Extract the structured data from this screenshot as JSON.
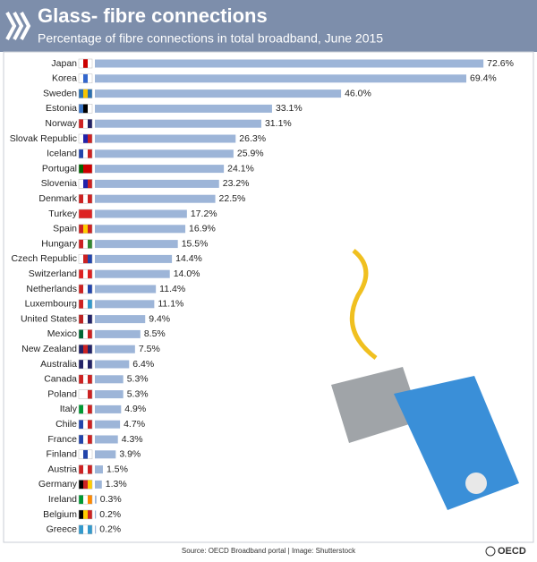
{
  "chart_data": {
    "type": "bar",
    "orientation": "horizontal",
    "title": "Glass- fibre connections",
    "subtitle": "Percentage of fibre connections in total broadband, June 2015",
    "source": "Source: OECD Broadband portal | Image: Shutterstock",
    "logo": "OECD",
    "color": "#9db5d8",
    "categories": [
      "Japan",
      "Korea",
      "Sweden",
      "Estonia",
      "Norway",
      "Slovak Republic",
      "Iceland",
      "Portugal",
      "Slovenia",
      "Denmark",
      "Turkey",
      "Spain",
      "Hungary",
      "Czech Republic",
      "Switzerland",
      "Netherlands",
      "Luxembourg",
      "United States",
      "Mexico",
      "New Zealand",
      "Australia",
      "Canada",
      "Poland",
      "Italy",
      "Chile",
      "France",
      "Finland",
      "Austria",
      "Germany",
      "Ireland",
      "Belgium",
      "Greece"
    ],
    "values": [
      72.6,
      69.4,
      46.0,
      33.1,
      31.1,
      26.3,
      25.9,
      24.1,
      23.2,
      22.5,
      17.2,
      16.9,
      15.5,
      14.4,
      14.0,
      11.4,
      11.1,
      9.4,
      8.5,
      7.5,
      6.4,
      5.3,
      5.3,
      4.9,
      4.7,
      4.3,
      3.9,
      1.5,
      1.3,
      0.3,
      0.2,
      0.2
    ],
    "value_labels": [
      "72.6%",
      "69.4%",
      "46.0%",
      "33.1%",
      "31.1%",
      "26.3%",
      "25.9%",
      "24.1%",
      "23.2%",
      "22.5%",
      "17.2%",
      "16.9%",
      "15.5%",
      "14.4%",
      "14.0%",
      "11.4%",
      "11.1%",
      "9.4%",
      "8.5%",
      "7.5%",
      "6.4%",
      "5.3%",
      "5.3%",
      "4.9%",
      "4.7%",
      "4.3%",
      "3.9%",
      "1.5%",
      "1.3%",
      "0.3%",
      "0.2%",
      "0.2%"
    ]
  }
}
